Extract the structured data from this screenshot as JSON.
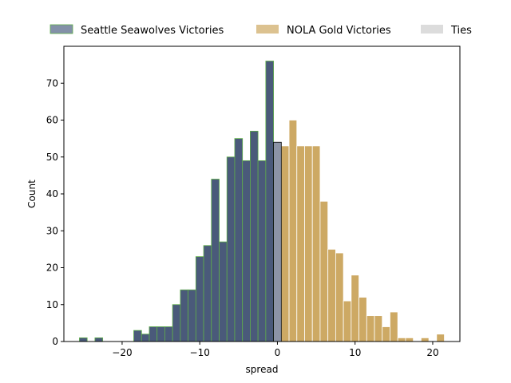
{
  "chart_data": {
    "type": "bar",
    "xlabel": "spread",
    "ylabel": "Count",
    "xlim": [
      -27.5,
      23.5
    ],
    "ylim": [
      0,
      80
    ],
    "xticks": [
      -20,
      -10,
      0,
      10,
      20
    ],
    "xtick_labels": [
      "−20",
      "−10",
      "0",
      "10",
      "20"
    ],
    "yticks": [
      0,
      10,
      20,
      30,
      40,
      50,
      60,
      70
    ],
    "bin_width": 1,
    "legend_position": "top",
    "series": [
      {
        "name": "Seattle Seawolves Victories",
        "color": "#4a5a7a",
        "edge_color": "#5fae4a",
        "legend_color": "#8391a8",
        "x": [
          -25,
          -23,
          -18,
          -17,
          -16,
          -15,
          -14,
          -13,
          -12,
          -11,
          -10,
          -9,
          -8,
          -7,
          -6,
          -5,
          -4,
          -3,
          -2,
          -1
        ],
        "values": [
          1,
          1,
          3,
          2,
          4,
          4,
          4,
          10,
          14,
          14,
          23,
          26,
          44,
          27,
          50,
          55,
          49,
          57,
          49,
          76
        ]
      },
      {
        "name": "NOLA Gold Victories",
        "color": "#cda964",
        "edge_color": "#ffffff",
        "legend_color": "#dcc290",
        "x": [
          1,
          2,
          3,
          4,
          5,
          6,
          7,
          8,
          9,
          10,
          11,
          12,
          13,
          14,
          15,
          16,
          17,
          19,
          21
        ],
        "values": [
          53,
          60,
          53,
          53,
          53,
          38,
          25,
          24,
          11,
          18,
          12,
          7,
          7,
          4,
          8,
          1,
          1,
          1,
          2
        ]
      },
      {
        "name": "Ties",
        "color": "#8c94a6",
        "edge_color": "#000000",
        "legend_color": "#dcdcdc",
        "x": [
          0
        ],
        "values": [
          54
        ]
      }
    ]
  }
}
